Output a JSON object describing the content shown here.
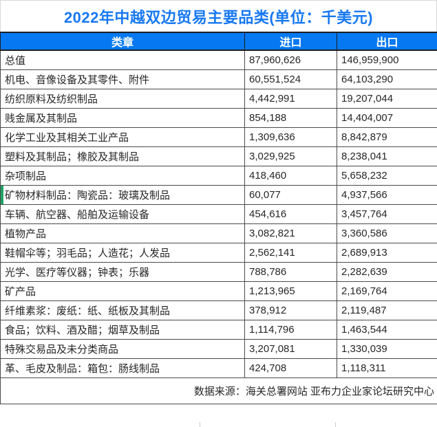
{
  "chart_data": {
    "type": "table",
    "title": "2022年中越双边贸易主要品类(单位：千美元)",
    "columns": [
      "类章",
      "进口",
      "出口"
    ],
    "rows": [
      {
        "category": "总值",
        "import": "87,960,626",
        "export": "146,959,900",
        "accent": false
      },
      {
        "category": "机电、音像设备及其零件、附件",
        "import": "60,551,524",
        "export": "64,103,290",
        "accent": false
      },
      {
        "category": "纺织原料及纺织制品",
        "import": "4,442,991",
        "export": "19,207,044",
        "accent": false
      },
      {
        "category": "贱金属及其制品",
        "import": "854,188",
        "export": "14,404,007",
        "accent": false
      },
      {
        "category": "化学工业及其相关工业产品",
        "import": "1,309,636",
        "export": "8,842,879",
        "accent": false
      },
      {
        "category": "塑料及其制品；橡胶及其制品",
        "import": "3,029,925",
        "export": "8,238,041",
        "accent": false
      },
      {
        "category": "杂项制品",
        "import": "418,460",
        "export": "5,658,232",
        "accent": false
      },
      {
        "category": "矿物材料制品：陶瓷品：玻璃及制品",
        "import": "60,077",
        "export": "4,937,566",
        "accent": true
      },
      {
        "category": "车辆、航空器、船舶及运输设备",
        "import": "454,616",
        "export": "3,457,764",
        "accent": false
      },
      {
        "category": "植物产品",
        "import": "3,082,821",
        "export": "3,360,586",
        "accent": false
      },
      {
        "category": "鞋帽伞等；羽毛品；人造花；人发品",
        "import": "2,562,141",
        "export": "2,689,913",
        "accent": false
      },
      {
        "category": "光学、医疗等仪器；钟表；乐器",
        "import": "788,786",
        "export": "2,282,639",
        "accent": false
      },
      {
        "category": "矿产品",
        "import": "1,213,965",
        "export": "2,169,764",
        "accent": false
      },
      {
        "category": "纤维素浆：废纸：纸、纸板及其制品",
        "import": "378,912",
        "export": "2,119,487",
        "accent": false
      },
      {
        "category": "食品；饮料、酒及醋；烟草及制品",
        "import": "1,114,796",
        "export": "1,463,544",
        "accent": false
      },
      {
        "category": "特殊交易品及未分类商品",
        "import": "3,207,081",
        "export": "1,330,039",
        "accent": false
      },
      {
        "category": "革、毛皮及制品：箱包：肠线制品",
        "import": "424,708",
        "export": "1,118,311",
        "accent": false
      }
    ],
    "source": "数据来源：海关总署网站 亚布力企业家论坛研究中心"
  },
  "colors": {
    "title_text": "#1778F2",
    "header_bg": "#0679F2",
    "header_text": "#FFFFFF",
    "border": "#4A4A4A",
    "cell_text": "#262626",
    "accent_green": "#21A366"
  }
}
